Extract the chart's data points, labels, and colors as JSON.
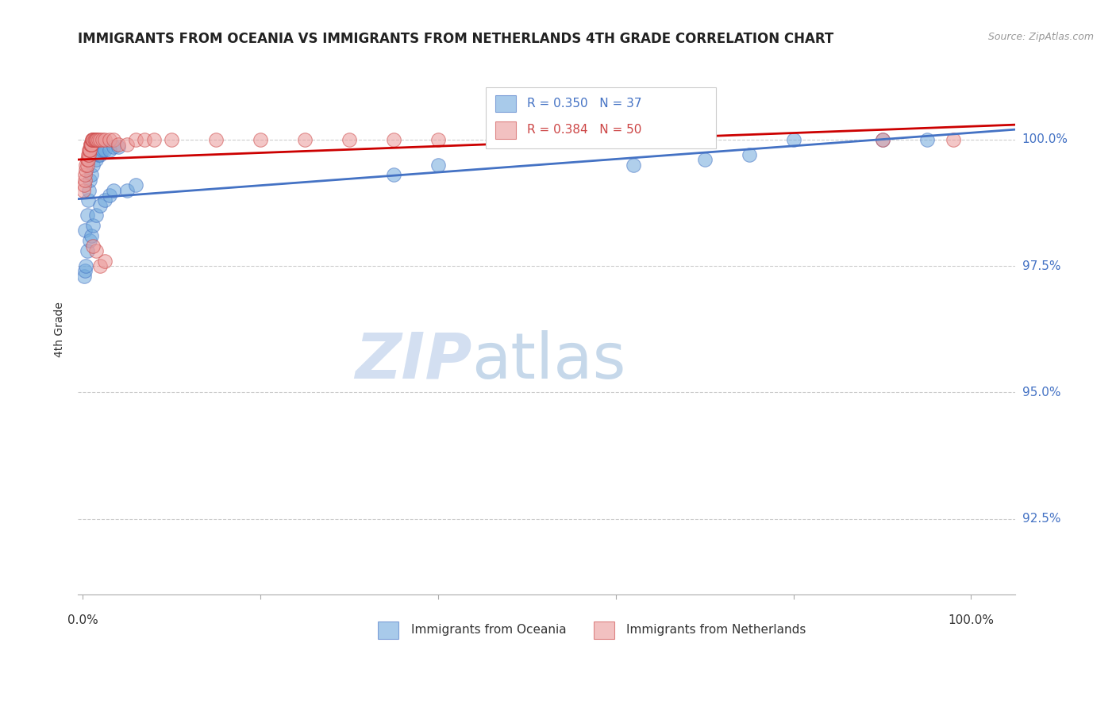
{
  "title": "IMMIGRANTS FROM OCEANIA VS IMMIGRANTS FROM NETHERLANDS 4TH GRADE CORRELATION CHART",
  "source": "Source: ZipAtlas.com",
  "ylabel": "4th Grade",
  "ymin": 91.0,
  "ymax": 101.5,
  "xmin": -0.005,
  "xmax": 1.05,
  "legend_r_blue": "R = 0.350",
  "legend_n_blue": "N = 37",
  "legend_r_pink": "R = 0.384",
  "legend_n_pink": "N = 50",
  "blue_color": "#6fa8dc",
  "pink_color": "#ea9999",
  "trendline_blue": "#4472c4",
  "trendline_pink": "#cc0000",
  "watermark_zip": "ZIP",
  "watermark_atlas": "atlas",
  "blue_scatter_x": [
    0.002,
    0.003,
    0.004,
    0.003,
    0.005,
    0.006,
    0.007,
    0.008,
    0.01,
    0.012,
    0.015,
    0.018,
    0.02,
    0.022,
    0.025,
    0.03,
    0.035,
    0.04,
    0.05,
    0.06,
    0.005,
    0.008,
    0.01,
    0.012,
    0.015,
    0.02,
    0.025,
    0.03,
    0.035,
    0.35,
    0.4,
    0.62,
    0.7,
    0.75,
    0.8,
    0.9,
    0.95
  ],
  "blue_scatter_y": [
    97.3,
    97.4,
    97.5,
    98.2,
    98.5,
    98.8,
    99.0,
    99.2,
    99.3,
    99.5,
    99.6,
    99.7,
    99.7,
    99.8,
    99.8,
    99.8,
    99.85,
    99.85,
    99.0,
    99.1,
    97.8,
    98.0,
    98.1,
    98.3,
    98.5,
    98.7,
    98.8,
    98.9,
    99.0,
    99.3,
    99.5,
    99.5,
    99.6,
    99.7,
    100.0,
    100.0,
    100.0
  ],
  "pink_scatter_x": [
    0.001,
    0.002,
    0.003,
    0.003,
    0.004,
    0.004,
    0.005,
    0.005,
    0.006,
    0.006,
    0.007,
    0.007,
    0.008,
    0.008,
    0.009,
    0.009,
    0.01,
    0.01,
    0.011,
    0.011,
    0.012,
    0.012,
    0.013,
    0.014,
    0.015,
    0.016,
    0.018,
    0.02,
    0.022,
    0.025,
    0.03,
    0.035,
    0.02,
    0.025,
    0.015,
    0.012,
    0.04,
    0.05,
    0.06,
    0.07,
    0.08,
    0.1,
    0.15,
    0.2,
    0.25,
    0.3,
    0.35,
    0.4,
    0.9,
    0.98
  ],
  "pink_scatter_y": [
    99.0,
    99.1,
    99.2,
    99.3,
    99.4,
    99.5,
    99.5,
    99.6,
    99.6,
    99.7,
    99.7,
    99.8,
    99.8,
    99.8,
    99.9,
    99.9,
    99.9,
    99.9,
    100.0,
    100.0,
    100.0,
    100.0,
    100.0,
    100.0,
    100.0,
    100.0,
    100.0,
    100.0,
    100.0,
    100.0,
    100.0,
    100.0,
    97.5,
    97.6,
    97.8,
    97.9,
    99.9,
    99.9,
    100.0,
    100.0,
    100.0,
    100.0,
    100.0,
    100.0,
    100.0,
    100.0,
    100.0,
    100.0,
    100.0,
    100.0
  ]
}
